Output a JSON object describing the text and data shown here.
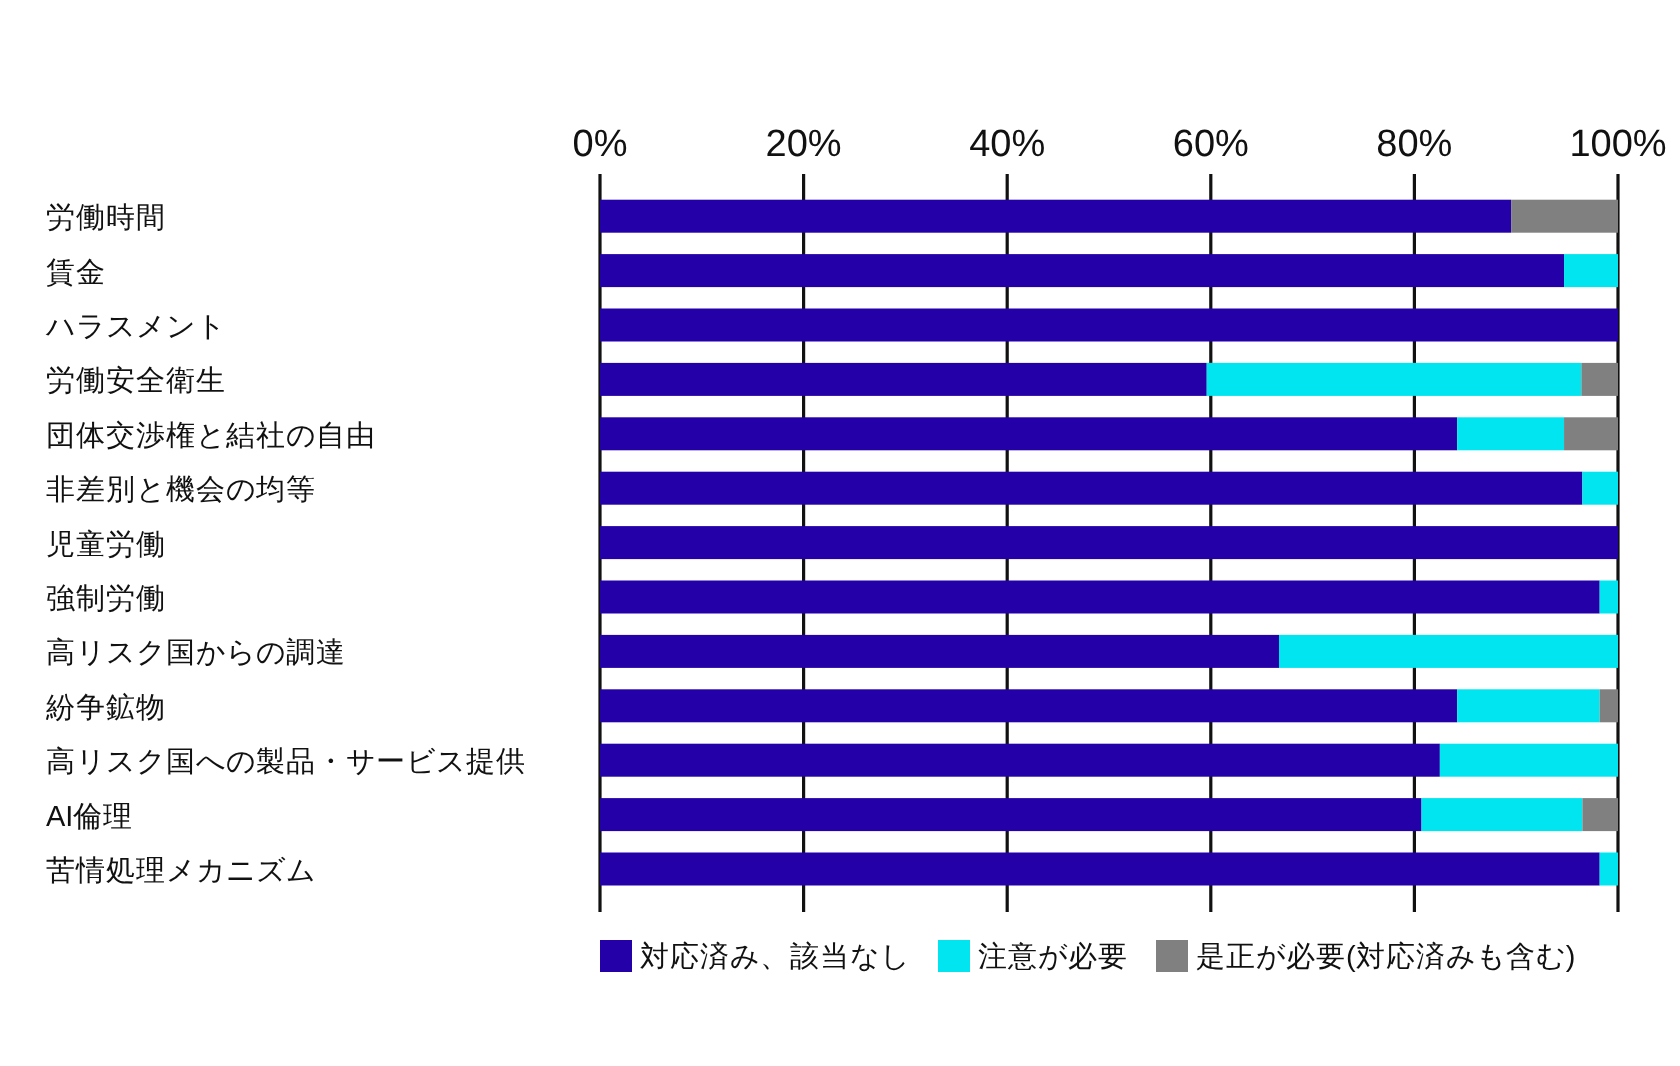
{
  "chart_data": {
    "type": "bar",
    "orientation": "horizontal",
    "stacked": true,
    "categories": [
      "労働時間",
      "賃金",
      "ハラスメント",
      "労働安全衛生",
      "団体交渉権と結社の自由",
      "非差別と機会の均等",
      "児童労働",
      "強制労働",
      "高リスク国からの調達",
      "紛争鉱物",
      "高リスク国への製品・サービス提供",
      "AI倫理",
      "苦情処理メカニズム"
    ],
    "series": [
      {
        "name": "対応済み、該当なし",
        "color": "#2400a8",
        "values": [
          89.5,
          94.7,
          100,
          59.6,
          84.2,
          96.5,
          100,
          98.2,
          66.7,
          84.2,
          82.5,
          80.7,
          98.2
        ]
      },
      {
        "name": "注意が必要",
        "color": "#00e5ef",
        "values": [
          0,
          5.3,
          0,
          36.8,
          10.5,
          3.5,
          0,
          1.8,
          33.3,
          14.0,
          17.5,
          15.8,
          1.8
        ]
      },
      {
        "name": "是正が必要(対応済みも含む)",
        "color": "#808080",
        "values": [
          10.5,
          0,
          0,
          3.6,
          5.3,
          0,
          0,
          0,
          0,
          1.8,
          0,
          3.5,
          0
        ]
      }
    ],
    "xlim": [
      0,
      100
    ],
    "xticks": [
      {
        "value": 0,
        "label": "0%"
      },
      {
        "value": 20,
        "label": "20%"
      },
      {
        "value": 40,
        "label": "40%"
      },
      {
        "value": 60,
        "label": "60%"
      },
      {
        "value": 80,
        "label": "80%"
      },
      {
        "value": 100,
        "label": "100%"
      }
    ],
    "grid": "x",
    "legend": "bottom"
  }
}
